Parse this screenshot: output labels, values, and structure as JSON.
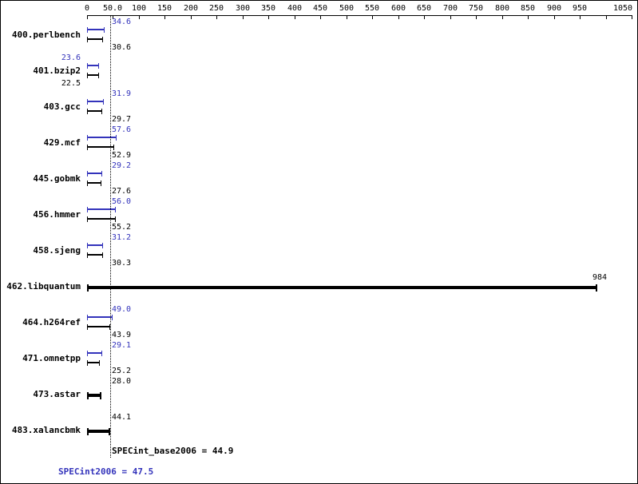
{
  "chart_data": {
    "type": "bar",
    "orientation": "horizontal",
    "axis": {
      "min": 0,
      "max": 1050,
      "ticks": [
        {
          "value": 0,
          "label": "0"
        },
        {
          "value": 50,
          "label": "50.0"
        },
        {
          "value": 100,
          "label": "100"
        },
        {
          "value": 150,
          "label": "150"
        },
        {
          "value": 200,
          "label": "200"
        },
        {
          "value": 250,
          "label": "250"
        },
        {
          "value": 300,
          "label": "300"
        },
        {
          "value": 350,
          "label": "350"
        },
        {
          "value": 400,
          "label": "400"
        },
        {
          "value": 450,
          "label": "450"
        },
        {
          "value": 500,
          "label": "500"
        },
        {
          "value": 550,
          "label": "550"
        },
        {
          "value": 600,
          "label": "600"
        },
        {
          "value": 650,
          "label": "650"
        },
        {
          "value": 700,
          "label": "700"
        },
        {
          "value": 750,
          "label": "750"
        },
        {
          "value": 800,
          "label": "800"
        },
        {
          "value": 850,
          "label": "850"
        },
        {
          "value": 900,
          "label": "900"
        },
        {
          "value": 950,
          "label": "950"
        },
        {
          "value": 1000,
          "label": ""
        },
        {
          "value": 1050,
          "label": "1050"
        }
      ]
    },
    "reference_line": {
      "value": 44.9,
      "style": "dotted"
    },
    "series_colors": {
      "peak": "#3333bb",
      "base": "#000000"
    },
    "benchmarks": [
      {
        "name": "400.perlbench",
        "peak": 34.6,
        "base": 30.6,
        "peak_label": "34.6",
        "base_label": "30.6",
        "label_side": "right"
      },
      {
        "name": "401.bzip2",
        "peak": 23.6,
        "base": 22.5,
        "peak_label": "23.6",
        "base_label": "22.5",
        "label_side": "left"
      },
      {
        "name": "403.gcc",
        "peak": 31.9,
        "base": 29.7,
        "peak_label": "31.9",
        "base_label": "29.7",
        "label_side": "right"
      },
      {
        "name": "429.mcf",
        "peak": 57.6,
        "base": 52.9,
        "peak_label": "57.6",
        "base_label": "52.9",
        "label_side": "right"
      },
      {
        "name": "445.gobmk",
        "peak": 29.2,
        "base": 27.6,
        "peak_label": "29.2",
        "base_label": "27.6",
        "label_side": "right"
      },
      {
        "name": "456.hmmer",
        "peak": 56.0,
        "base": 55.2,
        "peak_label": "56.0",
        "base_label": "55.2",
        "label_side": "right"
      },
      {
        "name": "458.sjeng",
        "peak": 31.2,
        "base": 30.3,
        "peak_label": "31.2",
        "base_label": "30.3",
        "label_side": "right"
      },
      {
        "name": "462.libquantum",
        "value": 984,
        "value_label": "984",
        "label_side": "end"
      },
      {
        "name": "464.h264ref",
        "peak": 49.0,
        "base": 43.9,
        "peak_label": "49.0",
        "base_label": "43.9",
        "label_side": "right"
      },
      {
        "name": "471.omnetpp",
        "peak": 29.1,
        "base": 25.2,
        "peak_label": "29.1",
        "base_label": "25.2",
        "label_side": "right"
      },
      {
        "name": "473.astar",
        "value": 28.0,
        "value_label": "28.0",
        "label_side": "right"
      },
      {
        "name": "483.xalancbmk",
        "value": 44.1,
        "value_label": "44.1",
        "label_side": "right"
      }
    ],
    "summary": {
      "base_text": "SPECint_base2006 = 44.9",
      "peak_text": "SPECint2006 = 47.5",
      "base_value": 44.9,
      "peak_value": 47.5
    }
  }
}
